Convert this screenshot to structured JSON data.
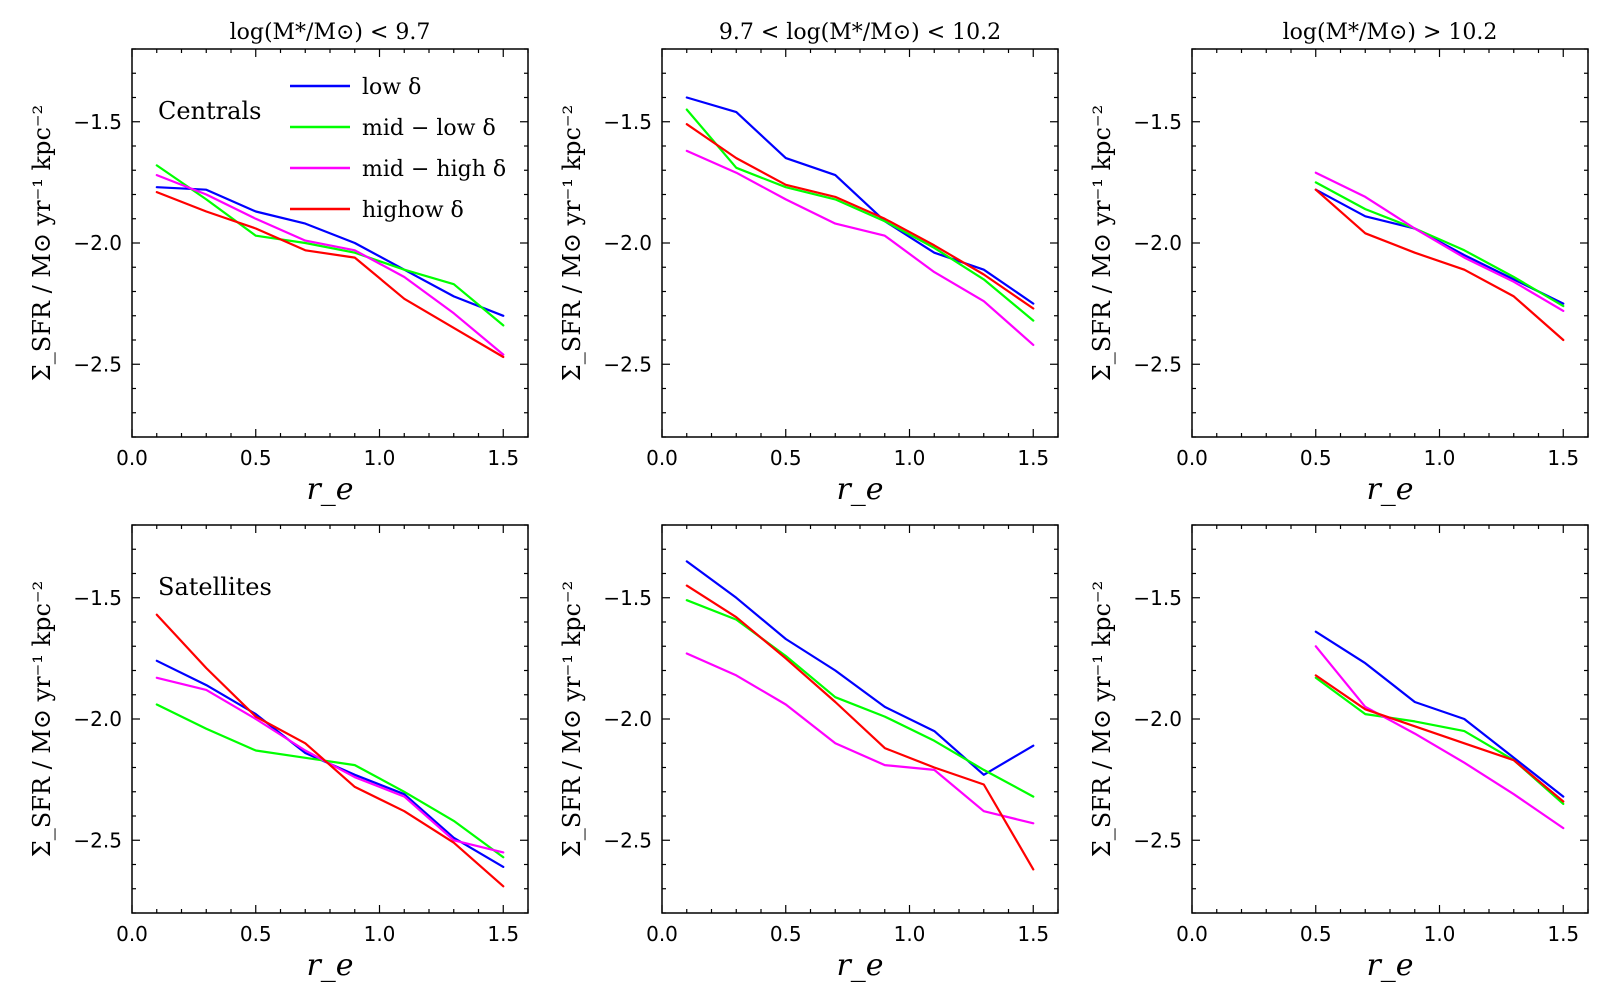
{
  "figure": {
    "legend": {
      "entries": [
        {
          "name": "low δ",
          "color": "#0000ff"
        },
        {
          "name": "mid − low δ",
          "color": "#00ff00"
        },
        {
          "name": "mid − high δ",
          "color": "#ff00ff"
        },
        {
          "name": "highow δ",
          "color": "#ff0000"
        }
      ]
    },
    "row_labels": [
      "Centrals",
      "Satellites"
    ],
    "column_titles": [
      "log(M*/M⊙) < 9.7",
      "9.7 < log(M*/M⊙) < 10.2",
      "log(M*/M⊙) > 10.2"
    ],
    "xlabel": "r_e",
    "ylabel": "Σ_SFR / M⊙ yr⁻¹ kpc⁻²",
    "x_ticks": [
      "0.0",
      "0.5",
      "1.0",
      "1.5"
    ],
    "y_ticks": [
      "−1.5",
      "−2.0",
      "−2.5"
    ]
  },
  "chart_data": [
    {
      "type": "line",
      "title": "log(M*/M⊙) < 9.7",
      "row_label": "Centrals",
      "xlabel": "r_e",
      "ylabel": "Σ_SFR / M⊙ yr⁻¹ kpc⁻²",
      "xlim": [
        0.0,
        1.6
      ],
      "ylim": [
        -2.8,
        -1.2
      ],
      "series": [
        {
          "name": "low δ",
          "x": [
            0.1,
            0.3,
            0.5,
            0.7,
            0.9,
            1.1,
            1.3,
            1.5
          ],
          "values": [
            -1.77,
            -1.78,
            -1.87,
            -1.92,
            -2.0,
            -2.11,
            -2.22,
            -2.3
          ]
        },
        {
          "name": "mid − low δ",
          "x": [
            0.1,
            0.3,
            0.5,
            0.7,
            0.9,
            1.1,
            1.3,
            1.5
          ],
          "values": [
            -1.68,
            -1.82,
            -1.97,
            -2.0,
            -2.04,
            -2.11,
            -2.17,
            -2.34
          ]
        },
        {
          "name": "mid − high δ",
          "x": [
            0.1,
            0.3,
            0.5,
            0.7,
            0.9,
            1.1,
            1.3,
            1.5
          ],
          "values": [
            -1.72,
            -1.8,
            -1.9,
            -1.99,
            -2.03,
            -2.14,
            -2.29,
            -2.46
          ]
        },
        {
          "name": "highow δ",
          "x": [
            0.1,
            0.3,
            0.5,
            0.7,
            0.9,
            1.1,
            1.3,
            1.5
          ],
          "values": [
            -1.79,
            -1.87,
            -1.94,
            -2.03,
            -2.06,
            -2.23,
            -2.35,
            -2.47
          ]
        }
      ]
    },
    {
      "type": "line",
      "title": "9.7 < log(M*/M⊙) < 10.2",
      "xlabel": "r_e",
      "ylabel": "Σ_SFR / M⊙ yr⁻¹ kpc⁻²",
      "xlim": [
        0.0,
        1.6
      ],
      "ylim": [
        -2.8,
        -1.2
      ],
      "series": [
        {
          "name": "low δ",
          "x": [
            0.1,
            0.3,
            0.5,
            0.7,
            0.9,
            1.1,
            1.3,
            1.5
          ],
          "values": [
            -1.4,
            -1.46,
            -1.65,
            -1.72,
            -1.91,
            -2.04,
            -2.11,
            -2.25
          ]
        },
        {
          "name": "mid − low δ",
          "x": [
            0.1,
            0.3,
            0.5,
            0.7,
            0.9,
            1.1,
            1.3,
            1.5
          ],
          "values": [
            -1.45,
            -1.69,
            -1.77,
            -1.82,
            -1.91,
            -2.02,
            -2.15,
            -2.32
          ]
        },
        {
          "name": "mid − high δ",
          "x": [
            0.1,
            0.3,
            0.5,
            0.7,
            0.9,
            1.1,
            1.3,
            1.5
          ],
          "values": [
            -1.62,
            -1.71,
            -1.82,
            -1.92,
            -1.97,
            -2.12,
            -2.24,
            -2.42
          ]
        },
        {
          "name": "highow δ",
          "x": [
            0.1,
            0.3,
            0.5,
            0.7,
            0.9,
            1.1,
            1.3,
            1.5
          ],
          "values": [
            -1.51,
            -1.65,
            -1.76,
            -1.81,
            -1.9,
            -2.01,
            -2.13,
            -2.27
          ]
        }
      ]
    },
    {
      "type": "line",
      "title": "log(M*/M⊙) > 10.2",
      "xlabel": "r_e",
      "ylabel": "Σ_SFR / M⊙ yr⁻¹ kpc⁻²",
      "xlim": [
        0.0,
        1.6
      ],
      "ylim": [
        -2.8,
        -1.2
      ],
      "series": [
        {
          "name": "low δ",
          "x": [
            0.5,
            0.7,
            0.9,
            1.1,
            1.3,
            1.5
          ],
          "values": [
            -1.78,
            -1.89,
            -1.94,
            -2.05,
            -2.15,
            -2.25
          ]
        },
        {
          "name": "mid − low δ",
          "x": [
            0.5,
            0.7,
            0.9,
            1.1,
            1.3,
            1.5
          ],
          "values": [
            -1.75,
            -1.86,
            -1.94,
            -2.03,
            -2.14,
            -2.26
          ]
        },
        {
          "name": "mid − high δ",
          "x": [
            0.5,
            0.7,
            0.9,
            1.1,
            1.3,
            1.5
          ],
          "values": [
            -1.71,
            -1.81,
            -1.94,
            -2.06,
            -2.16,
            -2.28
          ]
        },
        {
          "name": "highow δ",
          "x": [
            0.5,
            0.7,
            0.9,
            1.1,
            1.3,
            1.5
          ],
          "values": [
            -1.78,
            -1.96,
            -2.04,
            -2.11,
            -2.22,
            -2.4
          ]
        }
      ]
    },
    {
      "type": "line",
      "title": "",
      "row_label": "Satellites",
      "xlabel": "r_e",
      "ylabel": "Σ_SFR / M⊙ yr⁻¹ kpc⁻²",
      "xlim": [
        0.0,
        1.6
      ],
      "ylim": [
        -2.8,
        -1.2
      ],
      "series": [
        {
          "name": "low δ",
          "x": [
            0.1,
            0.3,
            0.5,
            0.7,
            0.9,
            1.1,
            1.3,
            1.5
          ],
          "values": [
            -1.76,
            -1.86,
            -1.98,
            -2.14,
            -2.23,
            -2.31,
            -2.49,
            -2.61
          ]
        },
        {
          "name": "mid − low δ",
          "x": [
            0.1,
            0.3,
            0.5,
            0.7,
            0.9,
            1.1,
            1.3,
            1.5
          ],
          "values": [
            -1.94,
            -2.04,
            -2.13,
            -2.16,
            -2.19,
            -2.3,
            -2.42,
            -2.57
          ]
        },
        {
          "name": "mid − high δ",
          "x": [
            0.1,
            0.3,
            0.5,
            0.7,
            0.9,
            1.1,
            1.3,
            1.5
          ],
          "values": [
            -1.83,
            -1.88,
            -2.0,
            -2.13,
            -2.24,
            -2.32,
            -2.5,
            -2.55
          ]
        },
        {
          "name": "highow δ",
          "x": [
            0.1,
            0.3,
            0.5,
            0.7,
            0.9,
            1.1,
            1.3,
            1.5
          ],
          "values": [
            -1.57,
            -1.79,
            -1.99,
            -2.1,
            -2.28,
            -2.38,
            -2.51,
            -2.69
          ]
        }
      ]
    },
    {
      "type": "line",
      "title": "",
      "xlabel": "r_e",
      "ylabel": "Σ_SFR / M⊙ yr⁻¹ kpc⁻²",
      "xlim": [
        0.0,
        1.6
      ],
      "ylim": [
        -2.8,
        -1.2
      ],
      "series": [
        {
          "name": "low δ",
          "x": [
            0.1,
            0.3,
            0.5,
            0.7,
            0.9,
            1.1,
            1.3,
            1.5
          ],
          "values": [
            -1.35,
            -1.5,
            -1.67,
            -1.8,
            -1.95,
            -2.05,
            -2.23,
            -2.11
          ]
        },
        {
          "name": "mid − low δ",
          "x": [
            0.1,
            0.3,
            0.5,
            0.7,
            0.9,
            1.1,
            1.3,
            1.5
          ],
          "values": [
            -1.51,
            -1.59,
            -1.74,
            -1.91,
            -1.99,
            -2.09,
            -2.21,
            -2.32
          ]
        },
        {
          "name": "mid − high δ",
          "x": [
            0.1,
            0.3,
            0.5,
            0.7,
            0.9,
            1.1,
            1.3,
            1.5
          ],
          "values": [
            -1.73,
            -1.82,
            -1.94,
            -2.1,
            -2.19,
            -2.21,
            -2.38,
            -2.43
          ]
        },
        {
          "name": "highow δ",
          "x": [
            0.1,
            0.3,
            0.5,
            0.7,
            0.9,
            1.1,
            1.3,
            1.5
          ],
          "values": [
            -1.45,
            -1.58,
            -1.75,
            -1.93,
            -2.12,
            -2.2,
            -2.27,
            -2.62
          ]
        }
      ]
    },
    {
      "type": "line",
      "title": "",
      "xlabel": "r_e",
      "ylabel": "Σ_SFR / M⊙ yr⁻¹ kpc⁻²",
      "xlim": [
        0.0,
        1.6
      ],
      "ylim": [
        -2.8,
        -1.2
      ],
      "series": [
        {
          "name": "low δ",
          "x": [
            0.5,
            0.7,
            0.9,
            1.1,
            1.3,
            1.5
          ],
          "values": [
            -1.64,
            -1.77,
            -1.93,
            -2.0,
            -2.16,
            -2.32
          ]
        },
        {
          "name": "mid − low δ",
          "x": [
            0.5,
            0.7,
            0.9,
            1.1,
            1.3,
            1.5
          ],
          "values": [
            -1.83,
            -1.98,
            -2.01,
            -2.05,
            -2.17,
            -2.35
          ]
        },
        {
          "name": "mid − high δ",
          "x": [
            0.5,
            0.7,
            0.9,
            1.1,
            1.3,
            1.5
          ],
          "values": [
            -1.7,
            -1.95,
            -2.06,
            -2.18,
            -2.31,
            -2.45
          ]
        },
        {
          "name": "highow δ",
          "x": [
            0.5,
            0.7,
            0.9,
            1.1,
            1.3,
            1.5
          ],
          "values": [
            -1.82,
            -1.96,
            -2.03,
            -2.1,
            -2.17,
            -2.34
          ]
        }
      ]
    }
  ]
}
